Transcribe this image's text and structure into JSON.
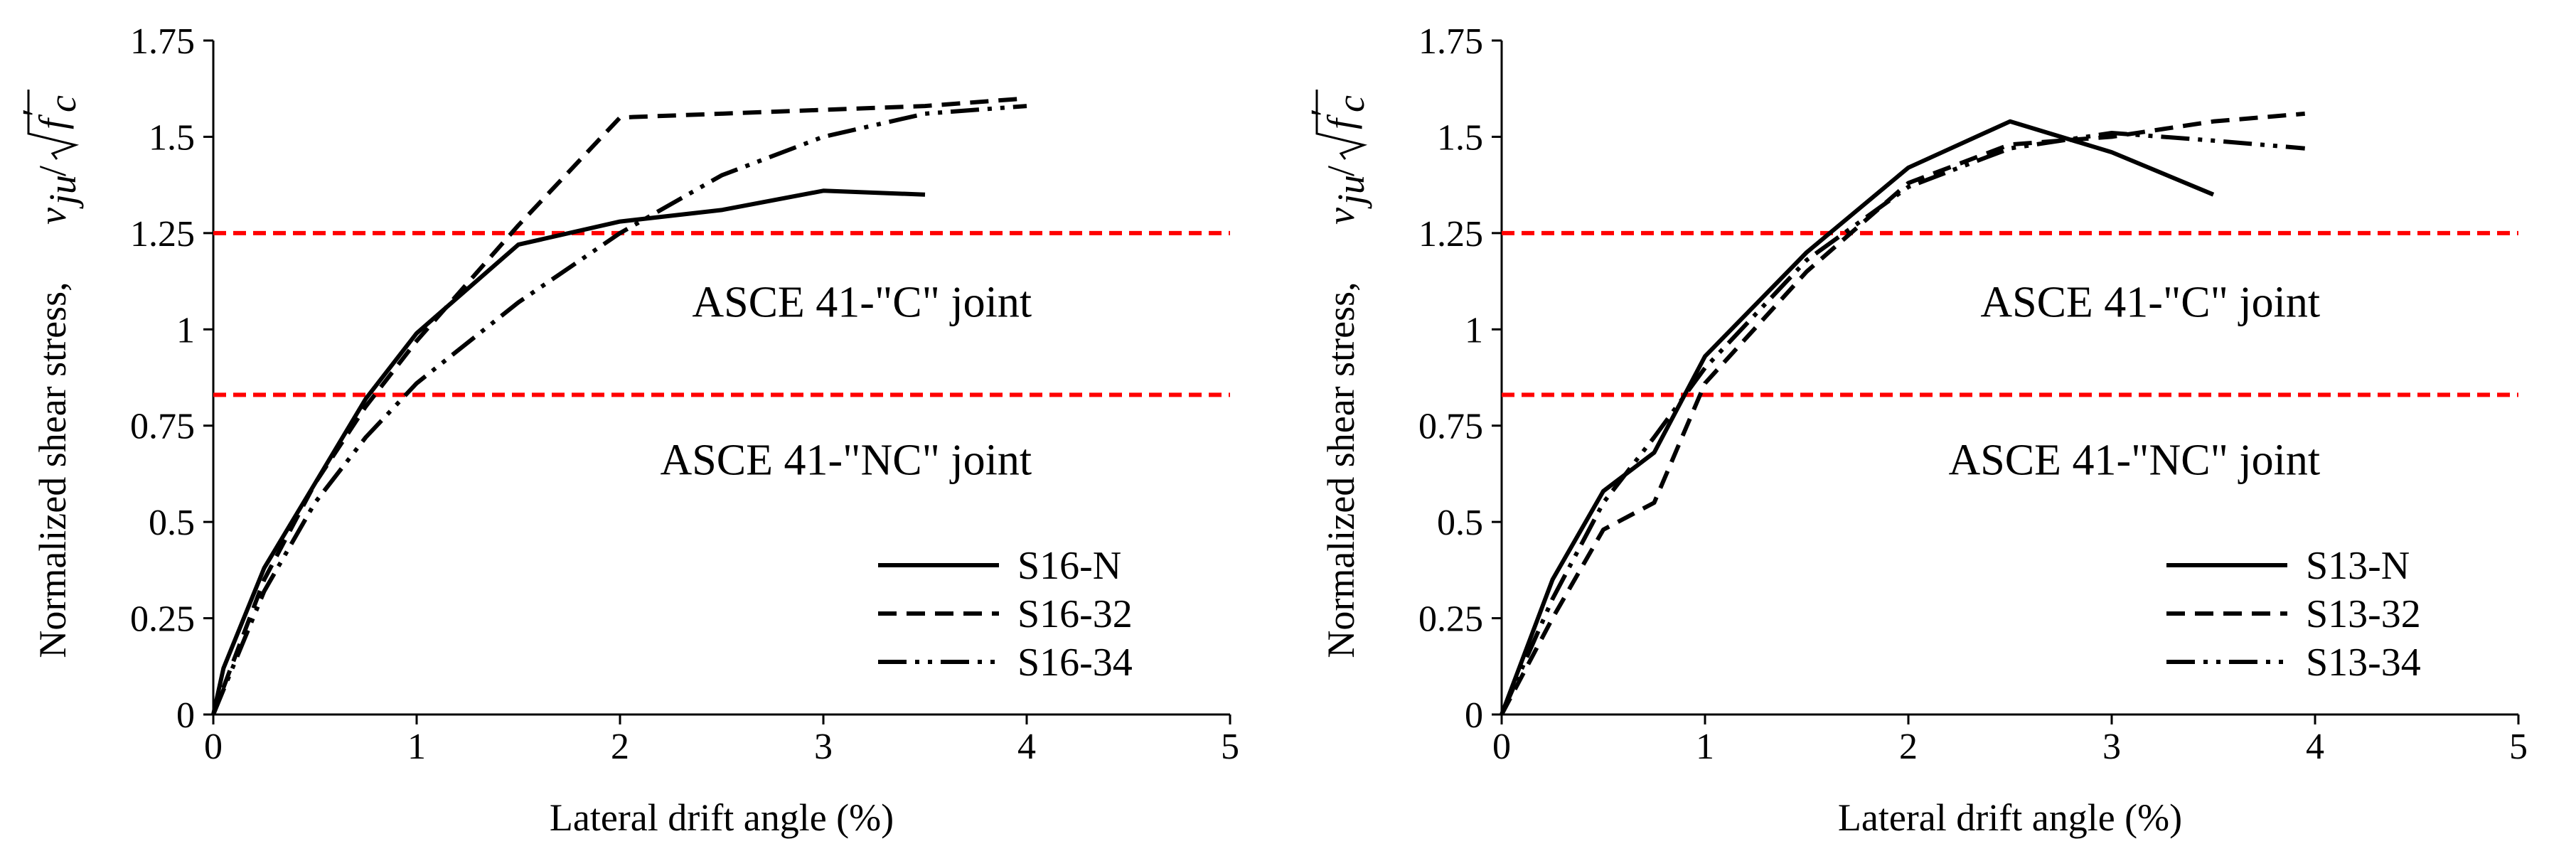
{
  "chart_data": [
    {
      "type": "line",
      "panel": "left",
      "xlabel": "Lateral drift angle (%)",
      "ylabel": "Normalized shear stress, ",
      "ylabel_math": "v_ju/√f'c",
      "xlim": [
        0,
        5
      ],
      "ylim": [
        0,
        1.75
      ],
      "x_ticks": [
        0,
        1,
        2,
        3,
        4,
        5
      ],
      "x_tick_labels": [
        "0",
        "1",
        "2",
        "3",
        "4",
        "5"
      ],
      "y_ticks": [
        0,
        0.25,
        0.5,
        0.75,
        1,
        1.25,
        1.5,
        1.75
      ],
      "y_tick_labels": [
        "0",
        "0.25",
        "0.5",
        "0.75",
        "1",
        "1.25",
        "1.5",
        "1.75"
      ],
      "grid": false,
      "legend_position": "bottom-right",
      "reference_lines": [
        {
          "y": 1.25,
          "color": "#ff0000",
          "style": "dashed"
        },
        {
          "y": 0.83,
          "color": "#ff0000",
          "style": "dashed"
        }
      ],
      "annotations": [
        {
          "text": "ASCE 41-\"C\" joint",
          "x": 3.85,
          "y": 1.07
        },
        {
          "text": "ASCE 41-\"NC\" joint",
          "x": 3.85,
          "y": 0.66
        }
      ],
      "series": [
        {
          "name": "S16-N",
          "style": "solid",
          "x": [
            0,
            0.05,
            0.25,
            0.5,
            0.75,
            1.0,
            1.5,
            2.0,
            2.5,
            3.0,
            3.5
          ],
          "y": [
            0,
            0.12,
            0.38,
            0.6,
            0.82,
            0.99,
            1.22,
            1.28,
            1.31,
            1.36,
            1.35
          ]
        },
        {
          "name": "S16-32",
          "style": "dashed",
          "x": [
            0,
            0.25,
            0.5,
            0.75,
            1.0,
            1.5,
            2.0,
            2.5,
            3.0,
            3.5,
            4.0
          ],
          "y": [
            0,
            0.35,
            0.6,
            0.8,
            0.97,
            1.27,
            1.55,
            1.56,
            1.57,
            1.58,
            1.6
          ]
        },
        {
          "name": "S16-34",
          "style": "dash-dot-dot",
          "x": [
            0,
            0.25,
            0.5,
            0.75,
            1.0,
            1.5,
            2.0,
            2.5,
            3.0,
            3.5,
            4.0
          ],
          "y": [
            0,
            0.32,
            0.55,
            0.72,
            0.86,
            1.07,
            1.25,
            1.4,
            1.5,
            1.56,
            1.58
          ]
        }
      ]
    },
    {
      "type": "line",
      "panel": "right",
      "xlabel": "Lateral drift angle (%)",
      "ylabel": "Normalized shear stress, ",
      "ylabel_math": "v_ju/√f'c",
      "xlim": [
        0,
        5
      ],
      "ylim": [
        0,
        1.75
      ],
      "x_ticks": [
        0,
        1,
        2,
        3,
        4,
        5
      ],
      "x_tick_labels": [
        "0",
        "1",
        "2",
        "3",
        "4",
        "5"
      ],
      "y_ticks": [
        0,
        0.25,
        0.5,
        0.75,
        1,
        1.25,
        1.5,
        1.75
      ],
      "y_tick_labels": [
        "0",
        "0.25",
        "0.5",
        "0.75",
        "1",
        "1.25",
        "1.5",
        "1.75"
      ],
      "grid": false,
      "legend_position": "bottom-right",
      "reference_lines": [
        {
          "y": 1.25,
          "color": "#ff0000",
          "style": "dashed"
        },
        {
          "y": 0.83,
          "color": "#ff0000",
          "style": "dashed"
        }
      ],
      "annotations": [
        {
          "text": "ASCE 41-\"C\" joint",
          "x": 3.85,
          "y": 1.07
        },
        {
          "text": "ASCE 41-\"NC\" joint",
          "x": 3.85,
          "y": 0.66
        }
      ],
      "series": [
        {
          "name": "S13-N",
          "style": "solid",
          "x": [
            0,
            0.25,
            0.5,
            0.75,
            1.0,
            1.5,
            2.0,
            2.5,
            3.0,
            3.5
          ],
          "y": [
            0,
            0.35,
            0.58,
            0.68,
            0.93,
            1.2,
            1.42,
            1.54,
            1.46,
            1.35
          ]
        },
        {
          "name": "S13-32",
          "style": "dashed",
          "x": [
            0,
            0.25,
            0.5,
            0.75,
            1.0,
            1.5,
            2.0,
            2.5,
            3.0,
            3.5,
            3.95
          ],
          "y": [
            0,
            0.25,
            0.48,
            0.55,
            0.86,
            1.15,
            1.38,
            1.48,
            1.5,
            1.54,
            1.56
          ]
        },
        {
          "name": "S13-34",
          "style": "dash-dot-dot",
          "x": [
            0,
            0.25,
            0.5,
            0.75,
            1.0,
            1.5,
            2.0,
            2.5,
            3.0,
            3.5,
            3.95
          ],
          "y": [
            0,
            0.3,
            0.55,
            0.72,
            0.9,
            1.18,
            1.37,
            1.47,
            1.51,
            1.49,
            1.47
          ]
        }
      ]
    }
  ]
}
